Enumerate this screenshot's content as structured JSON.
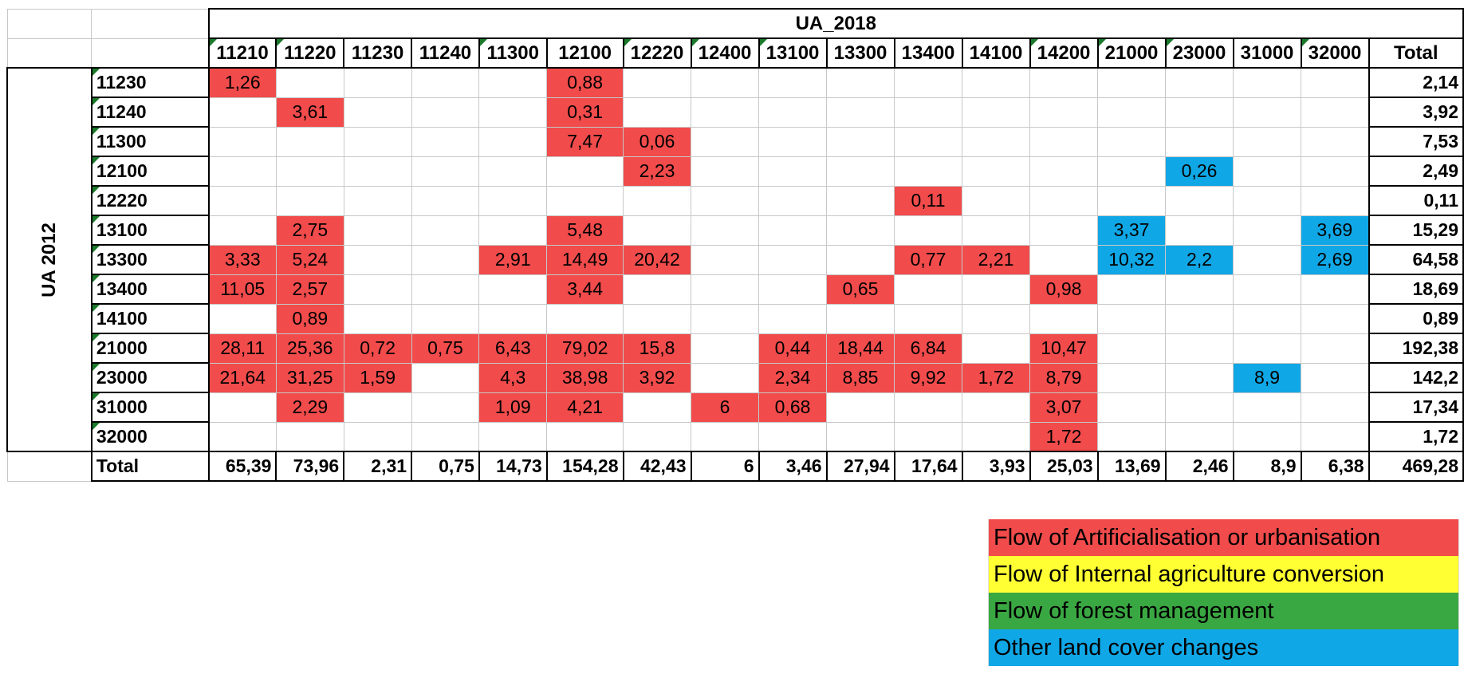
{
  "table": {
    "top_header": "UA_2018",
    "side_header": "UA 2012",
    "columns": [
      "11210",
      "11220",
      "11230",
      "11240",
      "11300",
      "12100",
      "12220",
      "12400",
      "13100",
      "13300",
      "13400",
      "14100",
      "14200",
      "21000",
      "23000",
      "31000",
      "32000",
      "Total"
    ],
    "rows": [
      {
        "label": "11230",
        "cells": [
          "1,26",
          "",
          "",
          "",
          "",
          "0,88",
          "",
          "",
          "",
          "",
          "",
          "",
          "",
          "",
          "",
          "",
          "",
          "2,14"
        ]
      },
      {
        "label": "11240",
        "cells": [
          "",
          "3,61",
          "",
          "",
          "",
          "0,31",
          "",
          "",
          "",
          "",
          "",
          "",
          "",
          "",
          "",
          "",
          "",
          "3,92"
        ]
      },
      {
        "label": "11300",
        "cells": [
          "",
          "",
          "",
          "",
          "",
          "7,47",
          "0,06",
          "",
          "",
          "",
          "",
          "",
          "",
          "",
          "",
          "",
          "",
          "7,53"
        ]
      },
      {
        "label": "12100",
        "cells": [
          "",
          "",
          "",
          "",
          "",
          "",
          "2,23",
          "",
          "",
          "",
          "",
          "",
          "",
          "",
          "0,26",
          "",
          "",
          "2,49"
        ]
      },
      {
        "label": "12220",
        "cells": [
          "",
          "",
          "",
          "",
          "",
          "",
          "",
          "",
          "",
          "",
          "0,11",
          "",
          "",
          "",
          "",
          "",
          "",
          "0,11"
        ]
      },
      {
        "label": "13100",
        "cells": [
          "",
          "2,75",
          "",
          "",
          "",
          "5,48",
          "",
          "",
          "",
          "",
          "",
          "",
          "",
          "3,37",
          "",
          "",
          "3,69",
          "15,29"
        ]
      },
      {
        "label": "13300",
        "cells": [
          "3,33",
          "5,24",
          "",
          "",
          "2,91",
          "14,49",
          "20,42",
          "",
          "",
          "",
          "0,77",
          "2,21",
          "",
          "10,32",
          "2,2",
          "",
          "2,69",
          "64,58"
        ]
      },
      {
        "label": "13400",
        "cells": [
          "11,05",
          "2,57",
          "",
          "",
          "",
          "3,44",
          "",
          "",
          "",
          "0,65",
          "",
          "",
          "0,98",
          "",
          "",
          "",
          "",
          "18,69"
        ]
      },
      {
        "label": "14100",
        "cells": [
          "",
          "0,89",
          "",
          "",
          "",
          "",
          "",
          "",
          "",
          "",
          "",
          "",
          "",
          "",
          "",
          "",
          "",
          "0,89"
        ]
      },
      {
        "label": "21000",
        "cells": [
          "28,11",
          "25,36",
          "0,72",
          "0,75",
          "6,43",
          "79,02",
          "15,8",
          "",
          "0,44",
          "18,44",
          "6,84",
          "",
          "10,47",
          "",
          "",
          "",
          "",
          "192,38"
        ]
      },
      {
        "label": "23000",
        "cells": [
          "21,64",
          "31,25",
          "1,59",
          "",
          "4,3",
          "38,98",
          "3,92",
          "",
          "2,34",
          "8,85",
          "9,92",
          "1,72",
          "8,79",
          "",
          "",
          "8,9",
          "",
          "142,2"
        ]
      },
      {
        "label": "31000",
        "cells": [
          "",
          "2,29",
          "",
          "",
          "1,09",
          "4,21",
          "",
          "6",
          "0,68",
          "",
          "",
          "",
          "3,07",
          "",
          "",
          "",
          "",
          "17,34"
        ]
      },
      {
        "label": "32000",
        "cells": [
          "",
          "",
          "",
          "",
          "",
          "",
          "",
          "",
          "",
          "",
          "",
          "",
          "1,72",
          "",
          "",
          "",
          "",
          "1,72"
        ]
      }
    ],
    "total_row": {
      "label": "Total",
      "cells": [
        "65,39",
        "73,96",
        "2,31",
        "0,75",
        "14,73",
        "154,28",
        "42,43",
        "6",
        "3,46",
        "27,94",
        "17,64",
        "3,93",
        "25,03",
        "13,69",
        "2,46",
        "8,9",
        "6,38",
        "469,28"
      ]
    }
  },
  "legend": [
    {
      "label": "Flow of Artificialisation or urbanisation",
      "color": "#f14b4b"
    },
    {
      "label": "Flow of Internal agriculture conversion",
      "color": "#ffff33"
    },
    {
      "label": "Flow of forest management",
      "color": "#3aa842"
    },
    {
      "label": "Other land cover changes",
      "color": "#10a7e6"
    }
  ],
  "colors": {
    "urbanisation": "#f14b4b",
    "other": "#10a7e6"
  }
}
